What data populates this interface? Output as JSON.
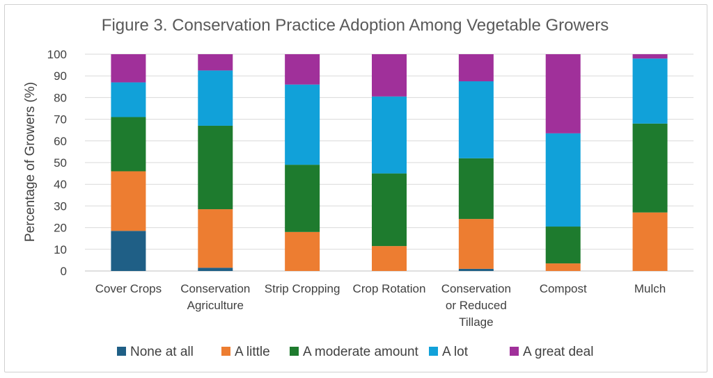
{
  "chart_data": {
    "type": "bar",
    "stacked": true,
    "title": "Figure 3. Conservation Practice Adoption Among Vegetable Growers",
    "xlabel": "",
    "ylabel": "Percentage of Growers (%)",
    "ylim": [
      0,
      100
    ],
    "yticks": [
      0,
      10,
      20,
      30,
      40,
      50,
      60,
      70,
      80,
      90,
      100
    ],
    "grid": true,
    "legend_position": "bottom",
    "categories": [
      [
        "Cover Crops"
      ],
      [
        "Conservation",
        "Agriculture"
      ],
      [
        "Strip Cropping"
      ],
      [
        "Crop Rotation"
      ],
      [
        "Conservation",
        "or Reduced",
        "Tillage"
      ],
      [
        "Compost"
      ],
      [
        "Mulch"
      ]
    ],
    "series": [
      {
        "name": "None at all",
        "color": "#1f5f86",
        "values": [
          18.5,
          1.5,
          0,
          0,
          1,
          0,
          0
        ]
      },
      {
        "name": "A little",
        "color": "#ed7d31",
        "values": [
          27.5,
          27,
          18,
          11.5,
          23,
          3.5,
          27
        ]
      },
      {
        "name": "A moderate amount",
        "color": "#1e7b2e",
        "values": [
          25,
          38.5,
          31,
          33.5,
          28,
          17,
          41
        ]
      },
      {
        "name": "A lot",
        "color": "#11a1d9",
        "values": [
          16,
          25.5,
          37,
          35.5,
          35.5,
          43,
          30
        ]
      },
      {
        "name": "A great deal",
        "color": "#a0309a",
        "values": [
          13,
          7.5,
          14,
          19.5,
          12.5,
          36.5,
          2
        ]
      }
    ]
  }
}
